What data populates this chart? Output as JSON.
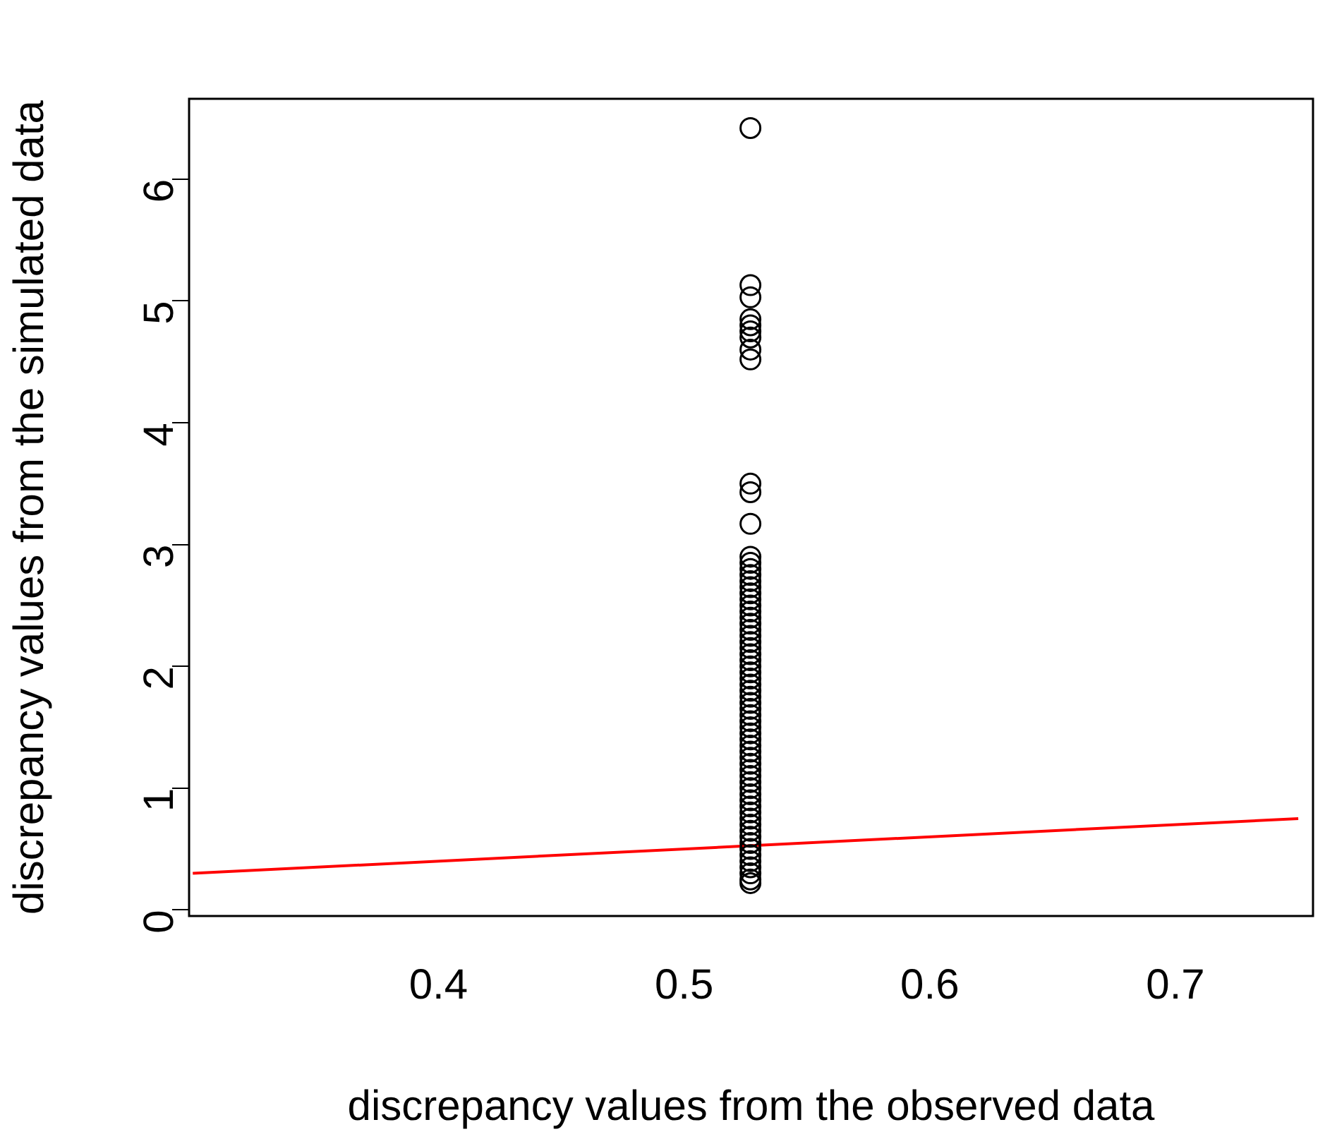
{
  "chart_data": {
    "type": "scatter",
    "xlabel": "discrepancy values from the observed data",
    "ylabel": "discrepancy values from the simulated data",
    "xlim": [
      0.2985,
      0.756
    ],
    "ylim": [
      -0.05,
      6.66
    ],
    "xticks": [
      0.4,
      0.5,
      0.6,
      0.7
    ],
    "yticks": [
      0,
      1,
      2,
      3,
      4,
      5,
      6
    ],
    "grid": false,
    "marker": "circle",
    "series": [
      {
        "type": "scatter",
        "color": "#000000",
        "x": [
          0.527,
          0.527,
          0.527,
          0.527,
          0.527,
          0.527,
          0.527,
          0.527,
          0.527,
          0.527,
          0.527,
          0.527,
          0.527,
          0.527,
          0.527,
          0.527,
          0.527,
          0.527,
          0.527,
          0.527,
          0.527,
          0.527,
          0.527,
          0.527,
          0.527,
          0.527,
          0.527,
          0.527,
          0.527,
          0.527,
          0.527,
          0.527,
          0.527,
          0.527,
          0.527,
          0.527,
          0.527,
          0.527,
          0.527,
          0.527,
          0.527,
          0.527,
          0.527,
          0.527,
          0.527,
          0.527,
          0.527,
          0.527,
          0.527,
          0.527,
          0.527,
          0.527,
          0.527,
          0.527,
          0.527,
          0.527,
          0.527,
          0.527,
          0.527,
          0.527,
          0.527,
          0.527,
          0.527,
          0.527,
          0.527,
          0.527,
          0.527
        ],
        "values": [
          6.42,
          5.13,
          5.03,
          4.85,
          4.8,
          4.75,
          4.7,
          4.6,
          4.52,
          3.5,
          3.43,
          3.17,
          2.9,
          2.85,
          2.8,
          2.75,
          2.7,
          2.65,
          2.6,
          2.55,
          2.5,
          2.45,
          2.4,
          2.35,
          2.3,
          2.25,
          2.2,
          2.15,
          2.1,
          2.05,
          2.0,
          1.95,
          1.9,
          1.85,
          1.8,
          1.75,
          1.7,
          1.65,
          1.6,
          1.55,
          1.5,
          1.45,
          1.4,
          1.35,
          1.3,
          1.25,
          1.2,
          1.15,
          1.1,
          1.05,
          1.0,
          0.95,
          0.9,
          0.85,
          0.8,
          0.75,
          0.7,
          0.65,
          0.6,
          0.55,
          0.5,
          0.45,
          0.4,
          0.35,
          0.3,
          0.25,
          0.22
        ]
      },
      {
        "type": "line",
        "color": "#ff0000",
        "x": [
          0.3,
          0.75
        ],
        "values": [
          0.3,
          0.75
        ],
        "marker": "none"
      }
    ]
  }
}
